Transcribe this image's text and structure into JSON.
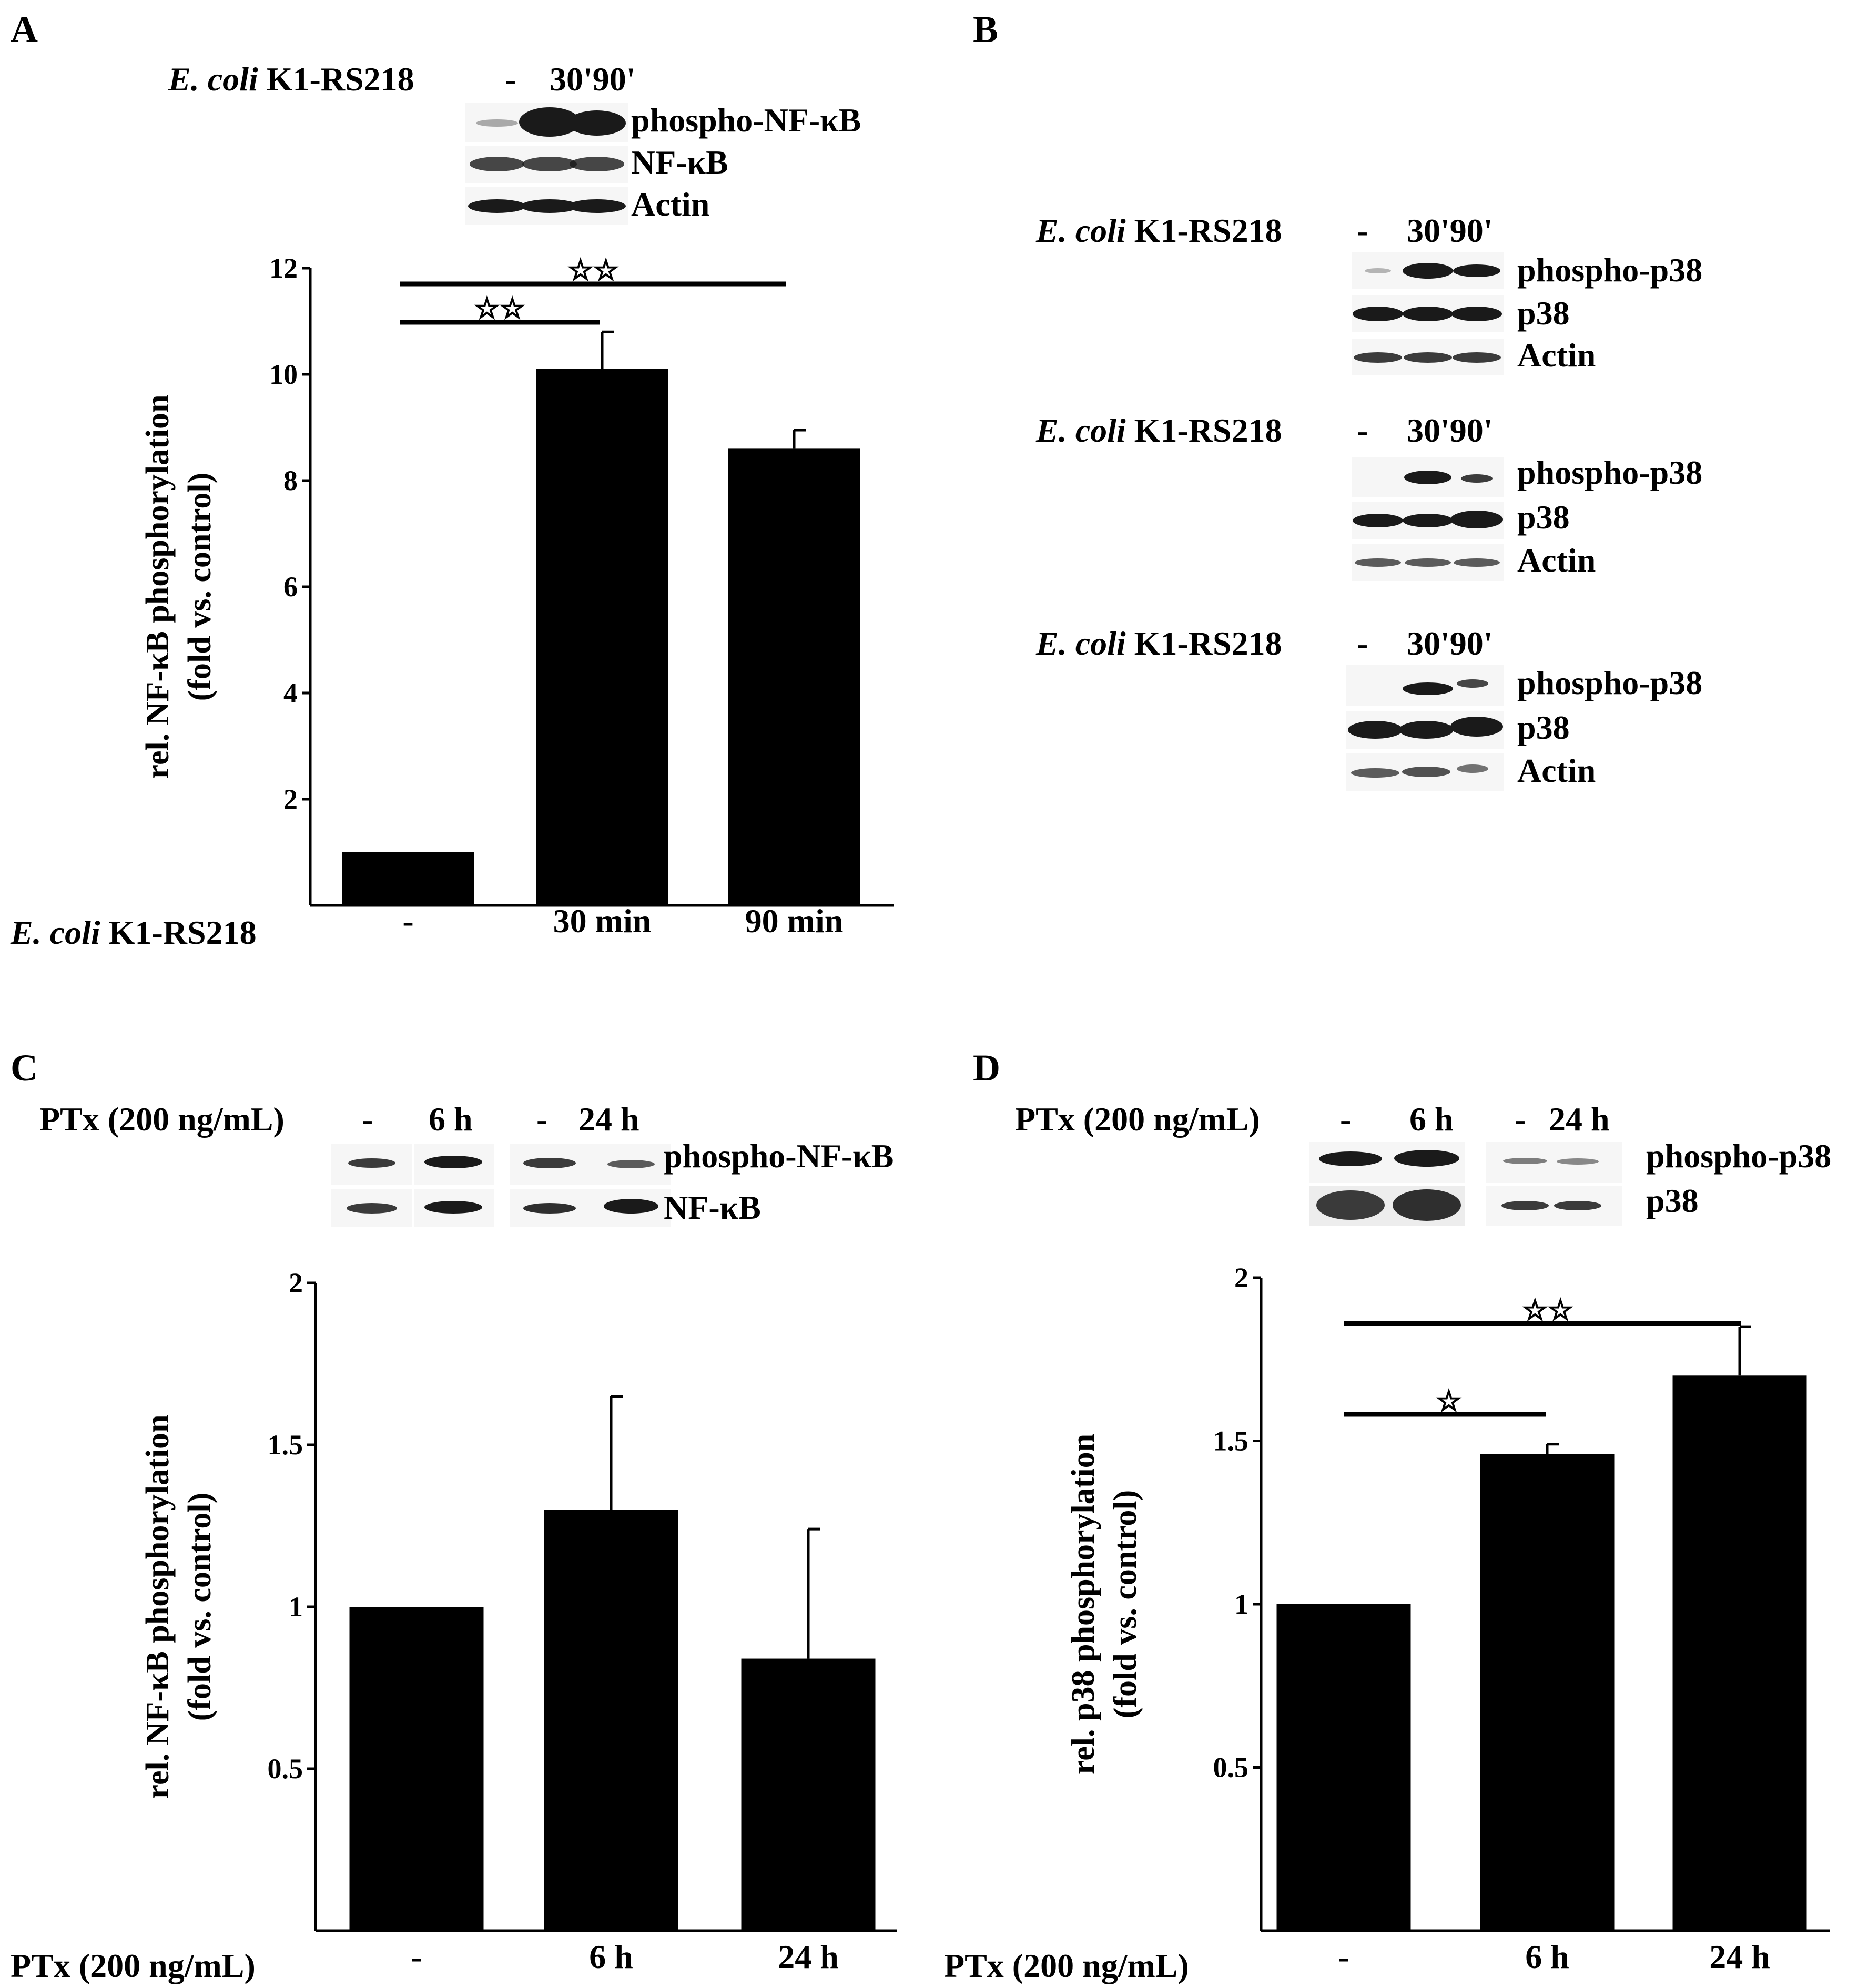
{
  "panels": {
    "A": {
      "letter": "A",
      "blot": {
        "cond_italic": "E. coli",
        "cond_rest": " K1-RS218",
        "lanes": [
          "-",
          "30'90'"
        ],
        "rows": [
          "phospho-NF-κB",
          "NF-κB",
          "Actin"
        ]
      },
      "x_title_italic": "E. coli",
      "x_title_rest": " K1-RS218",
      "significance": [
        "☆☆",
        "☆☆"
      ]
    },
    "B": {
      "letter": "B",
      "blots": [
        {
          "cond_italic": "E. coli",
          "cond_rest": " K1-RS218",
          "lanes": [
            "-",
            "30'90'"
          ],
          "rows": [
            "phospho-p38",
            "p38",
            "Actin"
          ]
        },
        {
          "cond_italic": "E. coli",
          "cond_rest": " K1-RS218",
          "lanes": [
            "-",
            "30'90'"
          ],
          "rows": [
            "phospho-p38",
            "p38",
            "Actin"
          ]
        },
        {
          "cond_italic": "E. coli",
          "cond_rest": " K1-RS218",
          "lanes": [
            "-",
            "30'90'"
          ],
          "rows": [
            "phospho-p38",
            "p38",
            "Actin"
          ]
        }
      ]
    },
    "C": {
      "letter": "C",
      "blot": {
        "cond": "PTx (200 ng/mL)",
        "lanes": [
          "-",
          "6 h",
          "-",
          "24 h"
        ],
        "rows": [
          "phospho-NF-κB",
          "NF-κB"
        ]
      },
      "x_title": "PTx (200 ng/mL)"
    },
    "D": {
      "letter": "D",
      "blot": {
        "cond": "PTx (200 ng/mL)",
        "lanes": [
          "-",
          "6 h",
          "-",
          "24 h"
        ],
        "rows": [
          "phospho-p38",
          "p38"
        ]
      },
      "x_title": "PTx (200 ng/mL)",
      "significance": [
        "☆☆",
        "☆"
      ]
    }
  },
  "chart_data": [
    {
      "type": "bar",
      "panel": "A",
      "categories": [
        "-",
        "30 min",
        "90 min"
      ],
      "values": [
        1.0,
        10.1,
        8.6
      ],
      "errors": [
        0.0,
        0.7,
        0.35
      ],
      "ylabel": [
        "rel. NF-κB phosphorylation",
        "(fold vs. control)"
      ],
      "yticks": [
        "2",
        "4",
        "6",
        "8",
        "10",
        "12"
      ],
      "ylim": [
        0,
        12
      ]
    },
    {
      "type": "bar",
      "panel": "C",
      "categories": [
        "-",
        "6 h",
        "24 h"
      ],
      "values": [
        1.0,
        1.3,
        0.84
      ],
      "errors": [
        0.0,
        0.35,
        0.4
      ],
      "ylabel": [
        "rel. NF-κB phosphorylation",
        "(fold vs. control)"
      ],
      "yticks": [
        "0.5",
        "1",
        "1.5",
        "2"
      ],
      "ylim": [
        0,
        2
      ]
    },
    {
      "type": "bar",
      "panel": "D",
      "categories": [
        "-",
        "6 h",
        "24 h"
      ],
      "values": [
        1.0,
        1.46,
        1.7
      ],
      "errors": [
        0.0,
        0.03,
        0.15
      ],
      "ylabel": [
        "rel. p38 phosphorylation",
        "(fold vs. control)"
      ],
      "yticks": [
        "0.5",
        "1",
        "1.5",
        "2"
      ],
      "ylim": [
        0,
        2
      ]
    }
  ]
}
